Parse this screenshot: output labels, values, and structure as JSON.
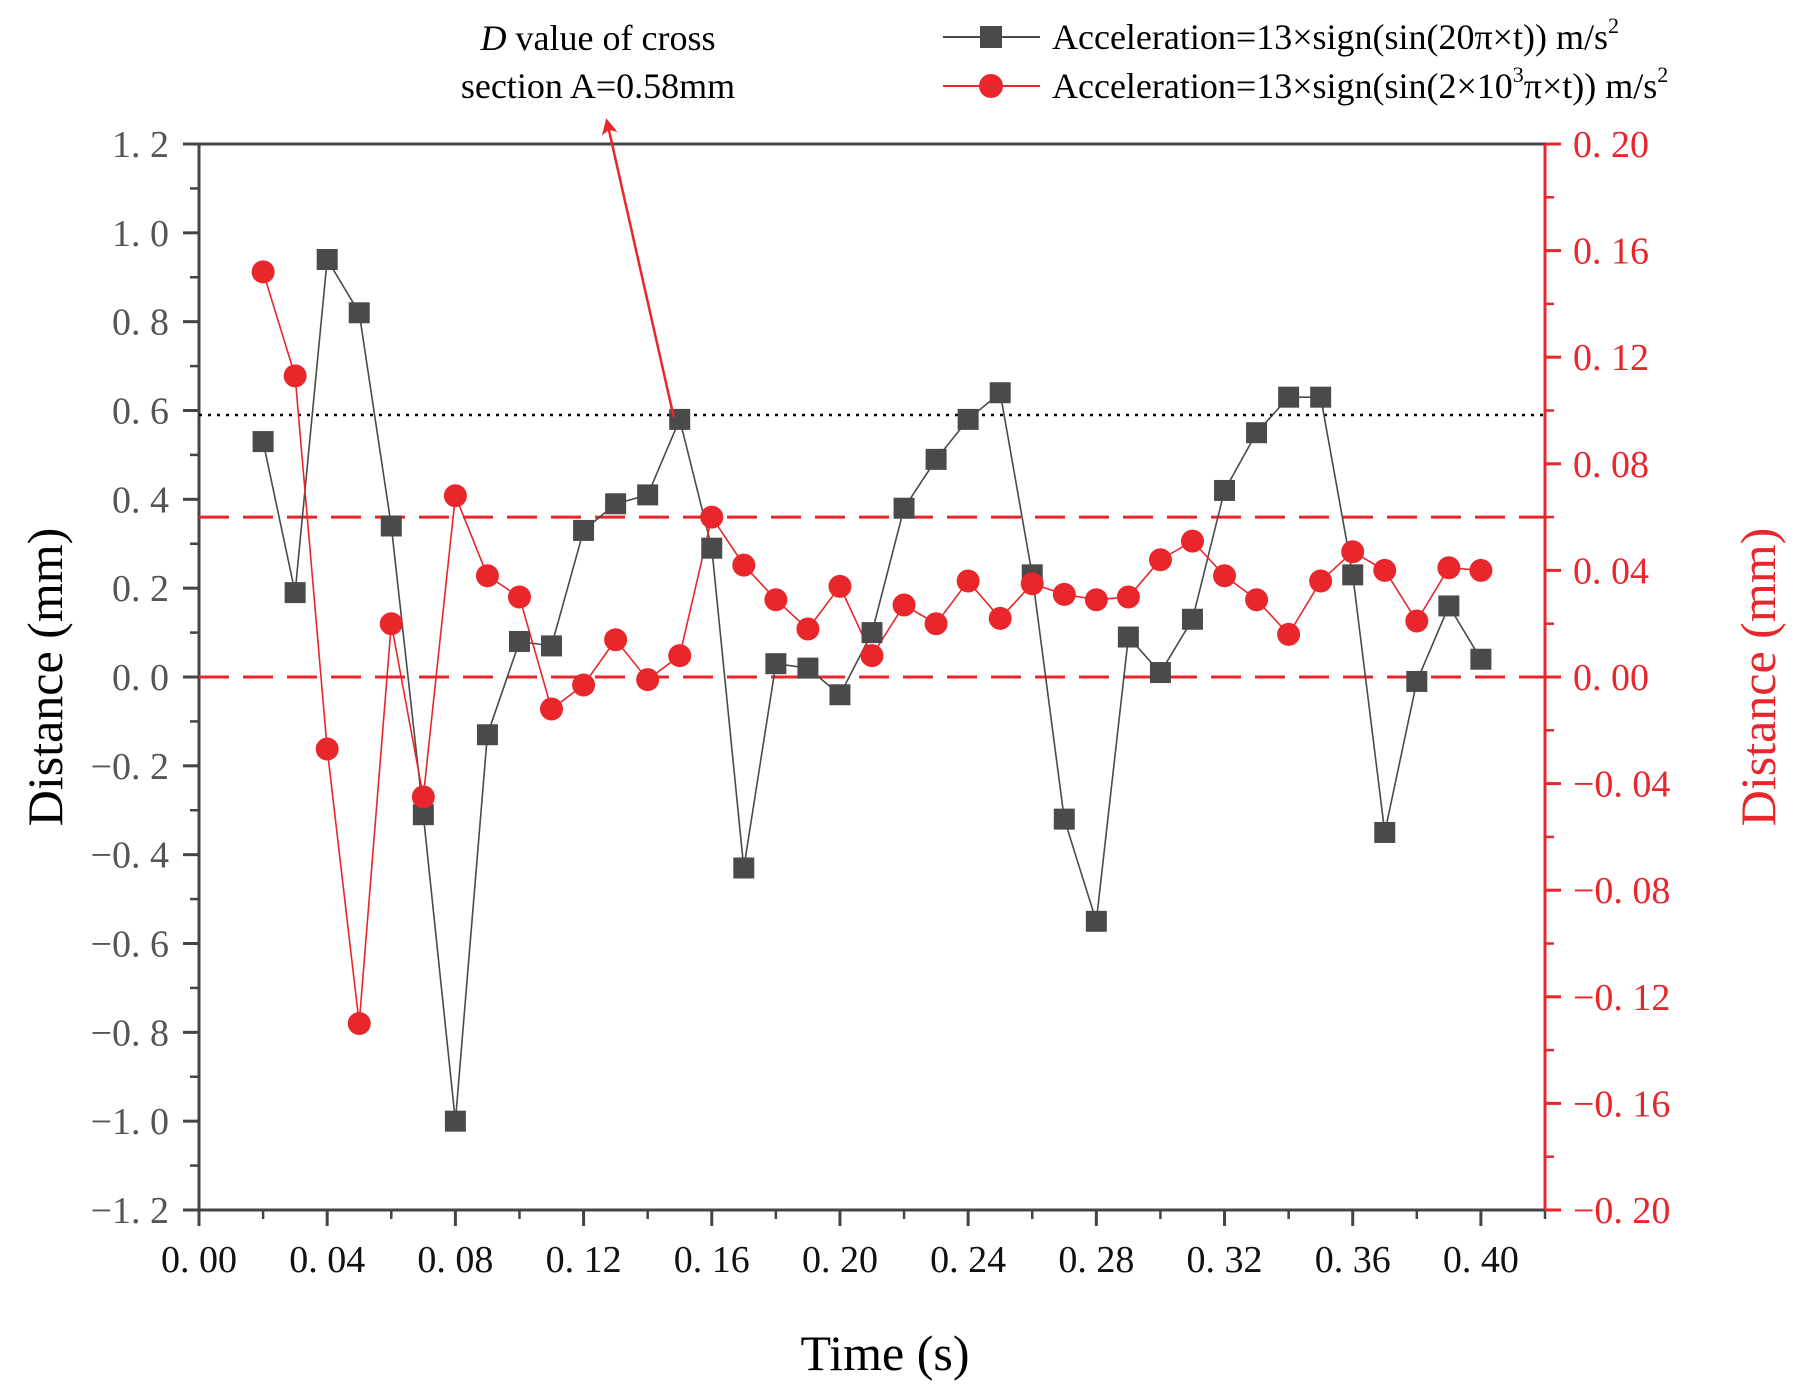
{
  "chart_data": {
    "type": "line",
    "title": "",
    "xlabel": "Time (s)",
    "ylabel": "Distance (mm)",
    "y2label": "Distance (mm)",
    "xlim": [
      0.0,
      0.42
    ],
    "ylim": [
      -1.2,
      1.2
    ],
    "y2lim": [
      -0.2,
      0.2
    ],
    "x_ticks": [
      "0. 00",
      "0. 04",
      "0. 08",
      "0. 12",
      "0. 16",
      "0. 20",
      "0. 24",
      "0. 28",
      "0. 32",
      "0. 36",
      "0. 40"
    ],
    "x_tick_values": [
      0.0,
      0.04,
      0.08,
      0.12,
      0.16,
      0.2,
      0.24,
      0.28,
      0.32,
      0.36,
      0.4
    ],
    "y_ticks": [
      "1. 2",
      "1. 0",
      "0. 8",
      "0. 6",
      "0. 4",
      "0. 2",
      "0. 0",
      "−0. 2",
      "−0. 4",
      "−0. 6",
      "−0. 8",
      "−1. 0",
      "−1. 2"
    ],
    "y_tick_values": [
      1.2,
      1.0,
      0.8,
      0.6,
      0.4,
      0.2,
      0.0,
      -0.2,
      -0.4,
      -0.6,
      -0.8,
      -1.0,
      -1.2
    ],
    "y2_ticks": [
      "0. 20",
      "0. 16",
      "0. 12",
      "0. 08",
      "0. 04",
      "0. 00",
      "−0. 04",
      "−0. 08",
      "−0. 12",
      "−0. 16",
      "−0. 20"
    ],
    "y2_tick_values": [
      0.2,
      0.16,
      0.12,
      0.08,
      0.04,
      0.0,
      -0.04,
      -0.08,
      -0.12,
      -0.16,
      -0.2
    ],
    "x": [
      0.02,
      0.03,
      0.04,
      0.05,
      0.06,
      0.07,
      0.08,
      0.09,
      0.1,
      0.11,
      0.12,
      0.13,
      0.14,
      0.15,
      0.16,
      0.17,
      0.18,
      0.19,
      0.2,
      0.21,
      0.22,
      0.23,
      0.24,
      0.25,
      0.26,
      0.27,
      0.28,
      0.29,
      0.3,
      0.31,
      0.32,
      0.33,
      0.34,
      0.35,
      0.36,
      0.37,
      0.38,
      0.39,
      0.4
    ],
    "series": [
      {
        "name": "Acceleration=13×sign(sin(20π×t))  m/s²",
        "legend_main": "Acceleration=13×sign(sin(20π×t))  m/s",
        "legend_sup": "2",
        "axis": "left",
        "marker": "square",
        "color": "#4a4a4a",
        "values": [
          0.53,
          0.19,
          0.94,
          0.82,
          0.34,
          -0.31,
          -1.0,
          -0.13,
          0.08,
          0.07,
          0.33,
          0.39,
          0.41,
          0.58,
          0.29,
          -0.43,
          0.03,
          0.02,
          -0.04,
          0.1,
          0.38,
          0.49,
          0.58,
          0.64,
          0.23,
          -0.32,
          -0.55,
          0.09,
          0.01,
          0.13,
          0.42,
          0.55,
          0.63,
          0.63,
          0.23,
          -0.35,
          -0.01,
          0.16,
          0.04
        ]
      },
      {
        "name": "Acceleration=13×sign(sin(2×10³π×t))  m/s²",
        "legend_parts": [
          "Acceleration=13×sign(sin(2×10",
          "3",
          "π×t))  m/s",
          "2"
        ],
        "axis": "right",
        "marker": "circle",
        "color": "#e8262b",
        "values": [
          0.152,
          0.113,
          -0.027,
          -0.13,
          0.02,
          -0.045,
          0.068,
          0.038,
          0.03,
          -0.012,
          -0.003,
          0.014,
          -0.001,
          0.008,
          0.06,
          0.042,
          0.029,
          0.018,
          0.034,
          0.008,
          0.027,
          0.02,
          0.036,
          0.022,
          0.035,
          0.031,
          0.029,
          0.03,
          0.044,
          0.051,
          0.038,
          0.029,
          0.016,
          0.036,
          0.047,
          0.04,
          0.021,
          0.041,
          0.04
        ]
      }
    ],
    "reference_lines": [
      {
        "name": "cross-section-D-line",
        "axis": "left",
        "value": 0.59,
        "style": "dotted",
        "color": "#000000"
      },
      {
        "name": "red-upper-limit",
        "axis": "right",
        "value": 0.06,
        "style": "dashed",
        "color": "#e8262b"
      },
      {
        "name": "red-zero-limit",
        "axis": "right",
        "value": 0.0,
        "style": "dashed",
        "color": "#e8262b"
      }
    ],
    "annotation": {
      "line1_italic": "D",
      "line1_rest": " value of cross",
      "line2": "section A=0.58mm",
      "arrow_target_x": 0.15,
      "arrow_target_y": 0.59,
      "arrow_color": "#e8262b"
    },
    "legend_position": "top-right",
    "grid": false
  }
}
